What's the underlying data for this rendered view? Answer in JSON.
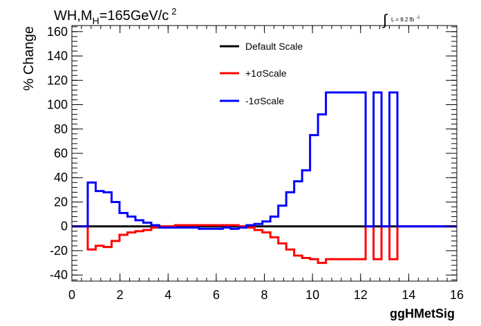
{
  "chart_data": {
    "type": "line",
    "title": {
      "prefix": "WH,M",
      "sub": "H",
      "mid": "=165GeV/c",
      "sup": "2"
    },
    "lumi": {
      "symbol": "∫",
      "text": "L = 8.2 fb",
      "sup": "-1"
    },
    "xlabel": "ggHMetSig",
    "ylabel": "% Change",
    "xlim": [
      0,
      16
    ],
    "ylim": [
      -45,
      165
    ],
    "xticks": [
      "0",
      "2",
      "4",
      "6",
      "8",
      "10",
      "12",
      "14",
      "16"
    ],
    "yticks": [
      "-40",
      "-20",
      "0",
      "20",
      "40",
      "60",
      "80",
      "100",
      "120",
      "140",
      "160"
    ],
    "grid": false,
    "legend_position": "top-center",
    "series": [
      {
        "name": "Default Scale",
        "color": "#000000",
        "bin_edges": [
          0,
          16
        ],
        "values": [
          0
        ]
      },
      {
        "name": "+1σScale",
        "color": "#ff0000",
        "bin_edges": [
          0,
          0.66,
          0.99,
          1.32,
          1.65,
          1.98,
          2.31,
          2.64,
          2.97,
          3.3,
          3.63,
          3.96,
          4.29,
          4.62,
          4.95,
          5.28,
          5.61,
          5.94,
          6.27,
          6.6,
          6.93,
          7.26,
          7.59,
          7.92,
          8.25,
          8.58,
          8.91,
          9.24,
          9.57,
          9.9,
          10.23,
          10.56,
          12.21,
          12.54,
          12.87,
          13.2,
          13.53,
          16
        ],
        "values": [
          0,
          -19,
          -16,
          -17,
          -12,
          -7,
          -5,
          -4,
          -3,
          -1,
          0,
          0,
          1,
          1,
          1,
          1,
          1,
          1,
          1,
          1,
          0,
          -1,
          -3,
          -5,
          -9,
          -14,
          -19,
          -24,
          -26,
          -27,
          -30,
          -27,
          0,
          -27,
          0,
          -27,
          0
        ]
      },
      {
        "name": "-1σScale",
        "color": "#0000ff",
        "bin_edges": [
          0,
          0.66,
          0.99,
          1.32,
          1.65,
          1.98,
          2.31,
          2.64,
          2.97,
          3.3,
          3.63,
          3.96,
          4.29,
          4.62,
          4.95,
          5.28,
          5.61,
          5.94,
          6.27,
          6.6,
          6.93,
          7.26,
          7.59,
          7.92,
          8.25,
          8.58,
          8.91,
          9.24,
          9.57,
          9.9,
          10.23,
          10.56,
          12.21,
          12.54,
          12.87,
          13.2,
          13.53,
          16
        ],
        "values": [
          0,
          36,
          29,
          28,
          20,
          11,
          8,
          5,
          3,
          1,
          -1,
          -1,
          -1,
          -1,
          -1,
          -2,
          -2,
          -2,
          -1,
          -2,
          -1,
          1,
          2,
          4,
          8,
          17,
          28,
          37,
          46,
          75,
          92,
          110,
          0,
          110,
          0,
          110,
          0
        ]
      }
    ]
  }
}
